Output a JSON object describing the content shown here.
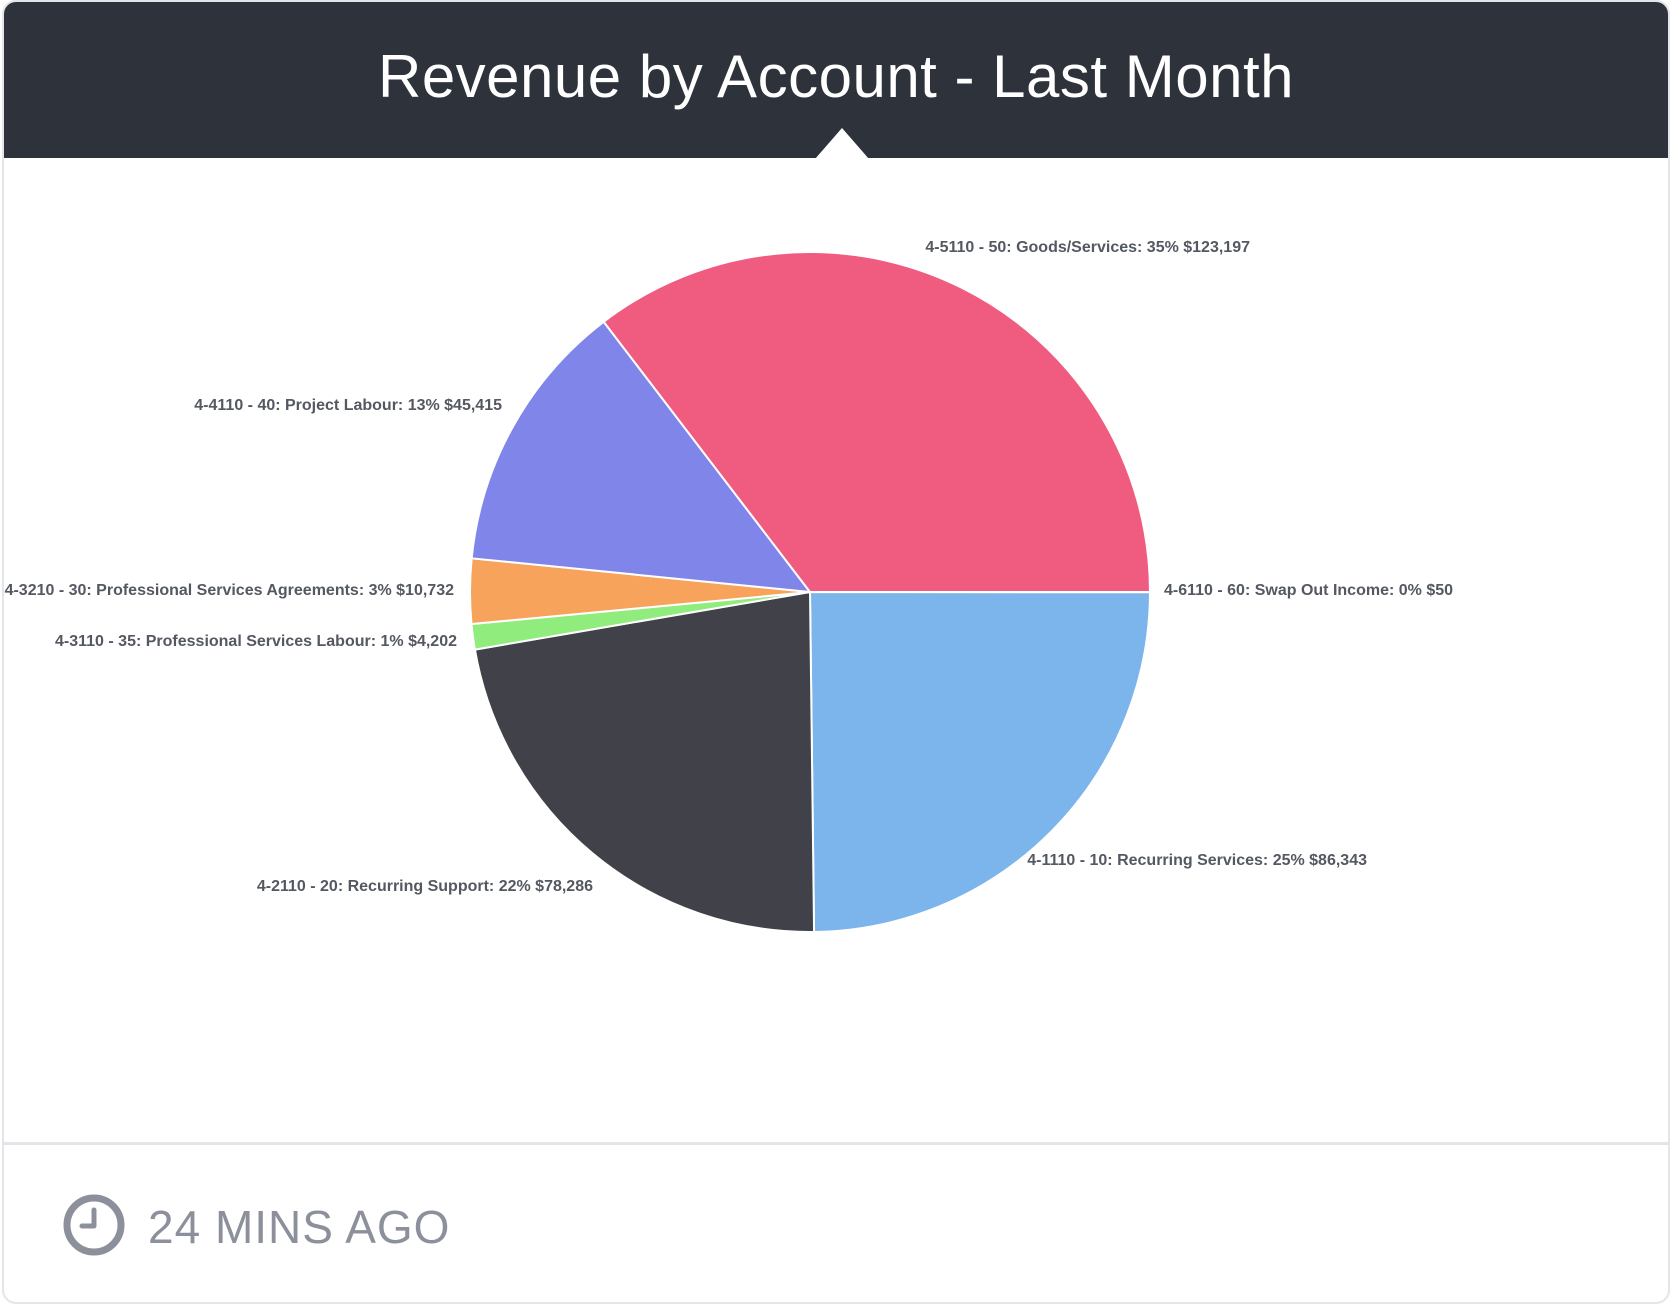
{
  "title": "Revenue by Account - Last Month",
  "updated": "24 MINS AGO",
  "icons": {
    "clock": "clock-icon"
  },
  "colors": {
    "header_bg": "#2e323b",
    "header_text": "#ffffff",
    "label_text": "#545861",
    "footer_text": "#8c909a"
  },
  "chart_data": {
    "type": "pie",
    "title": "Revenue by Account - Last Month",
    "slices": [
      {
        "name": "4-5110 - 50: Goods/Services",
        "percent": "35%",
        "value": 123197,
        "value_label": "$123,197",
        "color": "#f05c80",
        "label": "4-5110 - 50: Goods/Services: 35% $123,197"
      },
      {
        "name": "4-6110 - 60: Swap Out Income",
        "percent": "0%",
        "value": 50,
        "value_label": "$50",
        "color": "#5cc6c0",
        "label": "4-6110 - 60: Swap Out Income: 0% $50"
      },
      {
        "name": "4-1110 - 10: Recurring Services",
        "percent": "25%",
        "value": 86343,
        "value_label": "$86,343",
        "color": "#7cb4ec",
        "label": "4-1110 - 10: Recurring Services: 25% $86,343"
      },
      {
        "name": "4-2110 - 20: Recurring Support",
        "percent": "22%",
        "value": 78286,
        "value_label": "$78,286",
        "color": "#414249",
        "label": "4-2110 - 20: Recurring Support: 22% $78,286"
      },
      {
        "name": "4-3110 - 35: Professional Services Labour",
        "percent": "1%",
        "value": 4202,
        "value_label": "$4,202",
        "color": "#90ed7d",
        "label": "4-3110 - 35: Professional Services Labour: 1% $4,202"
      },
      {
        "name": "4-3210 - 30: Professional Services Agreements",
        "percent": "3%",
        "value": 10732,
        "value_label": "$10,732",
        "color": "#f7a35c",
        "label": "4-3210 - 30: Professional Services Agreements: 3% $10,732"
      },
      {
        "name": "4-4110 - 40: Project Labour",
        "percent": "13%",
        "value": 45415,
        "value_label": "$45,415",
        "color": "#8085e9",
        "label": "4-4110 - 40: Project Labour: 13% $45,415"
      }
    ],
    "start_angle": "3 o'clock, clockwise order: Swap Out Income, Recurring Services, Recurring Support, Professional Services Labour, Professional Services Agreements, Project Labour, Goods/Services"
  }
}
